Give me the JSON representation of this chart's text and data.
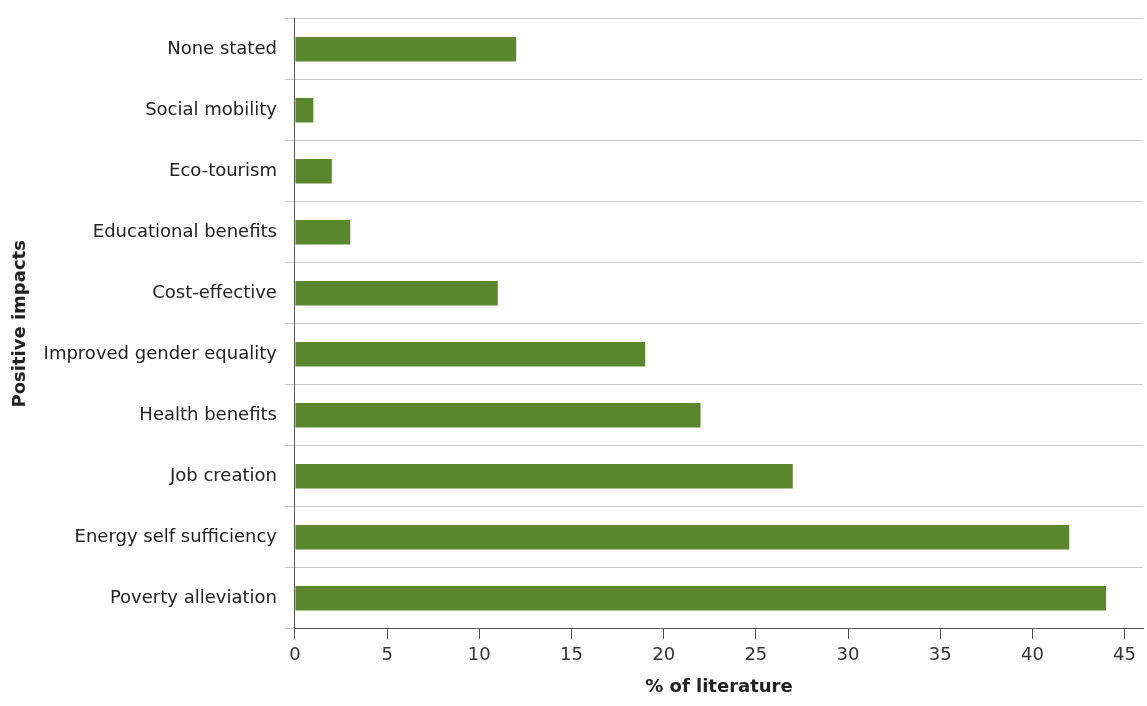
{
  "chart_data": {
    "type": "bar",
    "orientation": "horizontal",
    "xlabel": "% of literature",
    "ylabel": "Positive impacts",
    "categories": [
      "None stated",
      "Social mobility",
      "Eco-tourism",
      "Educational benefits",
      "Cost-effective",
      "Improved gender equality",
      "Health benefits",
      "Job creation",
      "Energy self sufficiency",
      "Poverty alleviation"
    ],
    "values": [
      12,
      1,
      2,
      3,
      11,
      19,
      22,
      27,
      42,
      44
    ],
    "color": "#5a872b",
    "xlim": [
      0,
      46
    ],
    "xticks": [
      0,
      5,
      10,
      15,
      20,
      25,
      30,
      35,
      40,
      45
    ],
    "grid": "y",
    "legend": false
  }
}
